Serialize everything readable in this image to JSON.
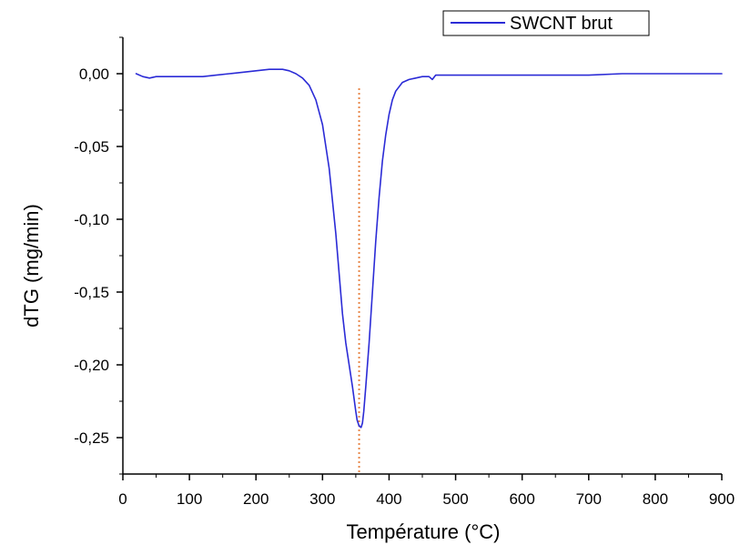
{
  "chart_data": {
    "type": "line",
    "xlabel": "Température (°C)",
    "ylabel": "dTG (mg/min)",
    "xlim": [
      0,
      900
    ],
    "ylim": [
      -0.275,
      0.025
    ],
    "x_ticks": [
      0,
      100,
      200,
      300,
      400,
      500,
      600,
      700,
      800,
      900
    ],
    "x_tick_labels": [
      "0",
      "100",
      "200",
      "300",
      "400",
      "500",
      "600",
      "700",
      "800",
      "900"
    ],
    "y_ticks": [
      0.0,
      -0.05,
      -0.1,
      -0.15,
      -0.2,
      -0.25
    ],
    "y_tick_labels": [
      "0,00",
      "-0,05",
      "-0,10",
      "-0,15",
      "-0,20",
      "-0,25"
    ],
    "grid": false,
    "legend_position": "top-right",
    "series": [
      {
        "name": "SWCNT brut",
        "color": "#2b2bd6",
        "x": [
          20,
          30,
          40,
          50,
          60,
          80,
          100,
          120,
          140,
          160,
          180,
          200,
          220,
          240,
          250,
          260,
          270,
          280,
          290,
          300,
          310,
          320,
          330,
          335,
          340,
          345,
          350,
          352,
          355,
          358,
          360,
          362,
          365,
          370,
          375,
          380,
          385,
          390,
          395,
          400,
          405,
          410,
          420,
          430,
          440,
          450,
          460,
          465,
          470,
          480,
          490,
          500,
          550,
          600,
          650,
          700,
          750,
          800,
          850,
          900
        ],
        "y": [
          0.0,
          -0.002,
          -0.003,
          -0.002,
          -0.002,
          -0.002,
          -0.002,
          -0.002,
          -0.001,
          0.0,
          0.001,
          0.002,
          0.003,
          0.003,
          0.002,
          0.0,
          -0.003,
          -0.008,
          -0.018,
          -0.035,
          -0.065,
          -0.11,
          -0.165,
          -0.185,
          -0.2,
          -0.215,
          -0.232,
          -0.238,
          -0.242,
          -0.243,
          -0.24,
          -0.232,
          -0.215,
          -0.185,
          -0.15,
          -0.115,
          -0.085,
          -0.06,
          -0.042,
          -0.028,
          -0.018,
          -0.012,
          -0.006,
          -0.004,
          -0.003,
          -0.002,
          -0.002,
          -0.004,
          -0.001,
          -0.001,
          -0.001,
          -0.001,
          -0.001,
          -0.001,
          -0.001,
          -0.001,
          0.0,
          0.0,
          0.0,
          0.0
        ]
      }
    ],
    "annotations": [
      {
        "type": "vertical-line",
        "x": 355,
        "style": "dotted",
        "color": "#e8874a"
      }
    ]
  }
}
